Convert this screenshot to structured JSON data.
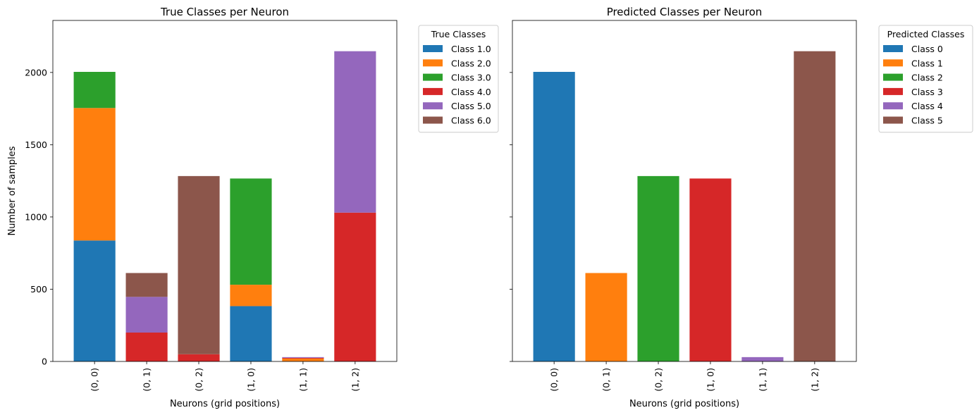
{
  "chart_data": [
    {
      "type": "bar",
      "stacked": true,
      "title": "True Classes per Neuron",
      "xlabel": "Neurons (grid positions)",
      "ylabel": "Number of samples",
      "categories": [
        "(0, 0)",
        "(0, 1)",
        "(0, 2)",
        "(1, 0)",
        "(1, 1)",
        "(1, 2)"
      ],
      "ylim": [
        0,
        2360
      ],
      "yticks": [
        0,
        500,
        1000,
        1500,
        2000
      ],
      "legend_title": "True Classes",
      "legend_position": "outside-top-right",
      "series": [
        {
          "name": "Class 1.0",
          "color": "#1f77b4",
          "values": [
            837,
            0,
            0,
            383,
            0,
            0
          ]
        },
        {
          "name": "Class 2.0",
          "color": "#ff7f0e",
          "values": [
            917,
            0,
            0,
            148,
            20,
            0
          ]
        },
        {
          "name": "Class 3.0",
          "color": "#2ca02c",
          "values": [
            250,
            0,
            0,
            735,
            0,
            0
          ]
        },
        {
          "name": "Class 4.0",
          "color": "#d62728",
          "values": [
            0,
            200,
            50,
            0,
            5,
            1030
          ]
        },
        {
          "name": "Class 5.0",
          "color": "#9467bd",
          "values": [
            0,
            247,
            0,
            0,
            5,
            1117
          ]
        },
        {
          "name": "Class 6.0",
          "color": "#8c564b",
          "values": [
            0,
            165,
            1233,
            0,
            0,
            0
          ]
        }
      ]
    },
    {
      "type": "bar",
      "stacked": false,
      "title": "Predicted Classes per Neuron",
      "xlabel": "Neurons (grid positions)",
      "ylabel": "",
      "categories": [
        "(0, 0)",
        "(0, 1)",
        "(0, 2)",
        "(1, 0)",
        "(1, 1)",
        "(1, 2)"
      ],
      "ylim": [
        0,
        2360
      ],
      "yticks": [
        0,
        500,
        1000,
        1500,
        2000
      ],
      "shared_y": true,
      "legend_title": "Predicted Classes",
      "legend_position": "outside-top-right",
      "series": [
        {
          "name": "Class 0",
          "color": "#1f77b4",
          "values": [
            2004,
            0,
            0,
            0,
            0,
            0
          ]
        },
        {
          "name": "Class 1",
          "color": "#ff7f0e",
          "values": [
            0,
            612,
            0,
            0,
            0,
            0
          ]
        },
        {
          "name": "Class 2",
          "color": "#2ca02c",
          "values": [
            0,
            0,
            1283,
            0,
            0,
            0
          ]
        },
        {
          "name": "Class 3",
          "color": "#d62728",
          "values": [
            0,
            0,
            0,
            1266,
            0,
            0
          ]
        },
        {
          "name": "Class 4",
          "color": "#9467bd",
          "values": [
            0,
            0,
            0,
            0,
            30,
            0
          ]
        },
        {
          "name": "Class 5",
          "color": "#8c564b",
          "values": [
            0,
            0,
            0,
            0,
            0,
            2147
          ]
        }
      ]
    }
  ]
}
